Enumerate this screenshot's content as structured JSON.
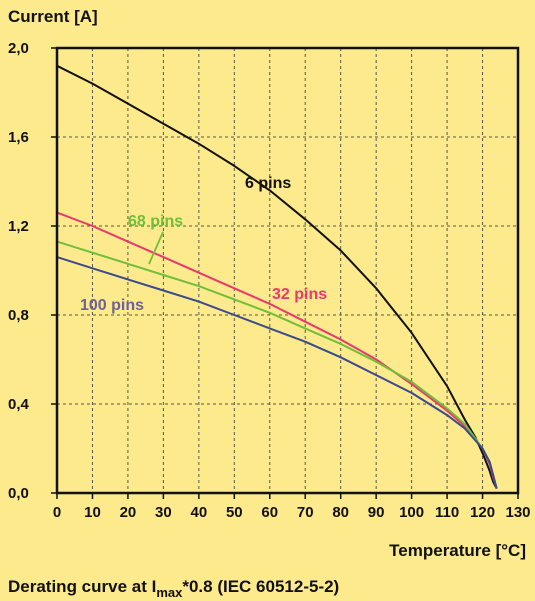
{
  "chart_data": {
    "type": "line",
    "ylabel": "Current [A]",
    "xlabel": "Temperature [°C]",
    "caption_prefix": "Derating curve at I",
    "caption_sub": "max",
    "caption_suffix": "*0.8 (IEC 60512-5-2)",
    "xlim": [
      0,
      130
    ],
    "ylim": [
      0,
      2.0
    ],
    "x_ticks": [
      0,
      10,
      20,
      30,
      40,
      50,
      60,
      70,
      80,
      90,
      100,
      110,
      120,
      130
    ],
    "y_ticks": [
      0.0,
      0.4,
      0.8,
      1.2,
      1.6,
      2.0
    ],
    "y_tick_labels": [
      "0,0",
      "0,4",
      "0,8",
      "1,2",
      "1,6",
      "2,0"
    ],
    "grid": true,
    "series": [
      {
        "name": "6 pins",
        "color": "#111111",
        "x": [
          0,
          10,
          20,
          30,
          40,
          50,
          60,
          70,
          80,
          90,
          100,
          110,
          115,
          118,
          120,
          122,
          123,
          124
        ],
        "y": [
          1.92,
          1.84,
          1.75,
          1.66,
          1.57,
          1.47,
          1.36,
          1.23,
          1.09,
          0.92,
          0.72,
          0.48,
          0.33,
          0.25,
          0.18,
          0.1,
          0.05,
          0.02
        ]
      },
      {
        "name": "32 pins",
        "color": "#e8386f",
        "x": [
          0,
          10,
          20,
          30,
          40,
          50,
          60,
          70,
          80,
          90,
          100,
          110,
          115,
          120,
          122,
          123,
          124
        ],
        "y": [
          1.26,
          1.2,
          1.13,
          1.06,
          0.99,
          0.92,
          0.85,
          0.77,
          0.69,
          0.6,
          0.49,
          0.37,
          0.3,
          0.2,
          0.13,
          0.07,
          0.02
        ]
      },
      {
        "name": "68 pins",
        "color": "#6fbf3a",
        "x": [
          0,
          10,
          20,
          30,
          40,
          50,
          60,
          70,
          80,
          90,
          100,
          110,
          115,
          120,
          122,
          123,
          124
        ],
        "y": [
          1.13,
          1.08,
          1.03,
          0.98,
          0.93,
          0.87,
          0.81,
          0.74,
          0.67,
          0.59,
          0.5,
          0.38,
          0.31,
          0.2,
          0.14,
          0.08,
          0.02
        ]
      },
      {
        "name": "100 pins",
        "color": "#3a4a8c",
        "x": [
          0,
          10,
          20,
          30,
          40,
          50,
          60,
          70,
          80,
          90,
          100,
          110,
          115,
          120,
          122,
          123,
          124
        ],
        "y": [
          1.06,
          1.01,
          0.96,
          0.91,
          0.86,
          0.8,
          0.74,
          0.68,
          0.61,
          0.53,
          0.45,
          0.35,
          0.29,
          0.2,
          0.14,
          0.08,
          0.02
        ]
      }
    ],
    "labels": [
      {
        "text": "6 pins",
        "color": "#111111"
      },
      {
        "text": "32 pins",
        "color": "#e8386f"
      },
      {
        "text": "68 pins",
        "color": "#6fbf3a"
      },
      {
        "text": "100 pins",
        "color": "#6d6294"
      }
    ]
  }
}
